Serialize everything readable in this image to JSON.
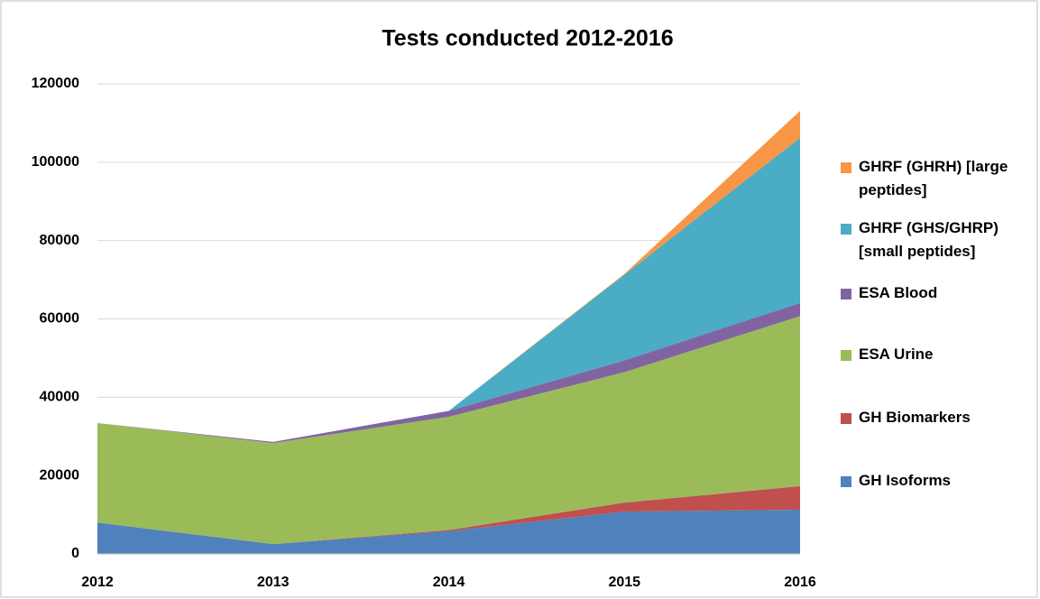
{
  "chart_data": {
    "type": "stacked_area",
    "title": "Tests conducted 2012-2016",
    "categories": [
      "2012",
      "2013",
      "2014",
      "2015",
      "2016"
    ],
    "series": [
      {
        "name": "GH Isoforms",
        "color": "#4f81bd",
        "values": [
          8000,
          2500,
          5800,
          10800,
          11300
        ]
      },
      {
        "name": "GH Biomarkers",
        "color": "#c0504d",
        "values": [
          0,
          0,
          300,
          2300,
          6000
        ]
      },
      {
        "name": "ESA Urine",
        "color": "#9bbb59",
        "values": [
          25400,
          25800,
          28900,
          33300,
          43400
        ]
      },
      {
        "name": "ESA Blood",
        "color": "#8064a2",
        "values": [
          0,
          300,
          1500,
          3000,
          3400
        ]
      },
      {
        "name": "GHRF (GHS/GHRP) [small peptides]",
        "color": "#4bacc6",
        "values": [
          0,
          0,
          0,
          21900,
          42100
        ]
      },
      {
        "name": "GHRF (GHRH) [large peptides]",
        "color": "#f79646",
        "values": [
          0,
          0,
          0,
          200,
          6900
        ]
      }
    ],
    "ylim": [
      0,
      120000
    ],
    "yticks": [
      0,
      20000,
      40000,
      60000,
      80000,
      100000,
      120000
    ],
    "grid": true,
    "legend": "right"
  }
}
